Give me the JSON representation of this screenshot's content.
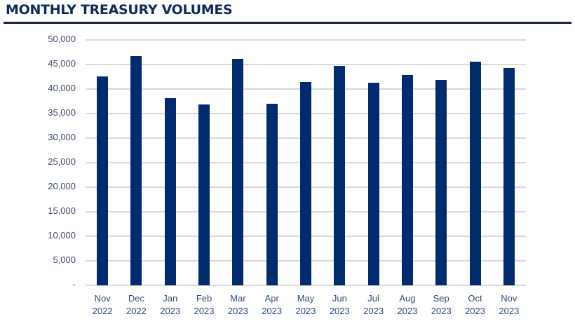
{
  "header": {
    "title": "MONTHLY TREASURY VOLUMES"
  },
  "colors": {
    "bar": "#002b6f",
    "title": "#0e2a5a",
    "rule": "#16233f",
    "grid": "#d9d9d9"
  },
  "chart_data": {
    "type": "bar",
    "title": "MONTHLY TREASURY VOLUMES",
    "xlabel": "",
    "ylabel": "",
    "ylim": [
      0,
      50000
    ],
    "yticks": [
      "-",
      "5,000",
      "10,000",
      "15,000",
      "20,000",
      "25,000",
      "30,000",
      "35,000",
      "40,000",
      "45,000",
      "50,000"
    ],
    "grid": true,
    "legend": null,
    "categories": [
      "Nov 2022",
      "Dec 2022",
      "Jan 2023",
      "Feb 2023",
      "Mar 2023",
      "Apr 2023",
      "May 2023",
      "Jun 2023",
      "Jul 2023",
      "Aug 2023",
      "Sep 2023",
      "Oct 2023",
      "Nov 2023"
    ],
    "category_lines": [
      [
        "Nov",
        "2022"
      ],
      [
        "Dec",
        "2022"
      ],
      [
        "Jan",
        "2023"
      ],
      [
        "Feb",
        "2023"
      ],
      [
        "Mar",
        "2023"
      ],
      [
        "Apr",
        "2023"
      ],
      [
        "May",
        "2023"
      ],
      [
        "Jun",
        "2023"
      ],
      [
        "Jul",
        "2023"
      ],
      [
        "Aug",
        "2023"
      ],
      [
        "Sep",
        "2023"
      ],
      [
        "Oct",
        "2023"
      ],
      [
        "Nov",
        "2023"
      ]
    ],
    "values": [
      42600,
      46700,
      38100,
      36900,
      46100,
      37000,
      41400,
      44700,
      41300,
      42900,
      41900,
      45600,
      44300
    ]
  }
}
